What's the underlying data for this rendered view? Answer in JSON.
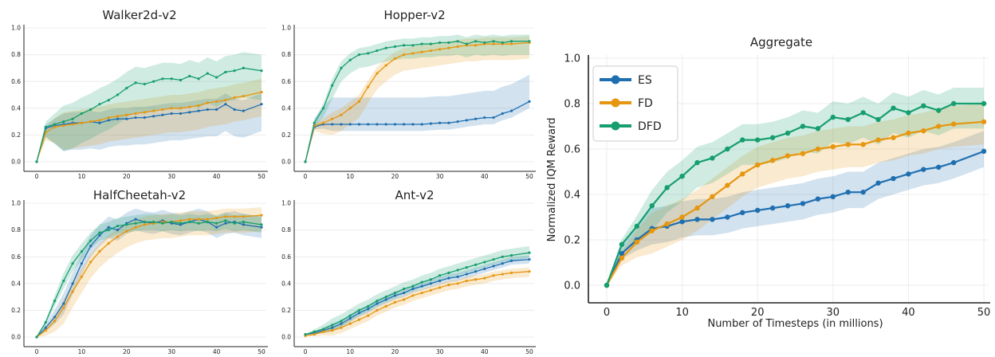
{
  "colors": {
    "ES": "#1f6fb0",
    "FD": "#e6960f",
    "DFD": "#169e6e",
    "axis": "#222222",
    "grid": "#ececec"
  },
  "chart_data": [
    {
      "type": "line",
      "title": "Walker2d-v2",
      "xlabel": "",
      "ylabel": "",
      "xlim": [
        0,
        50
      ],
      "ylim": [
        0,
        1
      ],
      "x_ticks": [
        0,
        10,
        20,
        30,
        40,
        50
      ],
      "y_ticks": [
        0.0,
        0.2,
        0.4,
        0.6,
        0.8,
        1.0
      ],
      "x_tick_labels": [
        "0",
        "10",
        "20",
        "30",
        "40",
        "50"
      ],
      "y_tick_labels": [
        "0.0",
        "0.2",
        "0.4",
        "0.6",
        "0.8",
        "1.0"
      ],
      "grid": true,
      "x": [
        0,
        2,
        4,
        6,
        8,
        10,
        12,
        14,
        16,
        18,
        20,
        22,
        24,
        26,
        28,
        30,
        32,
        34,
        36,
        38,
        40,
        42,
        44,
        46,
        50
      ],
      "series": [
        {
          "name": "ES",
          "color": "#1f6fb0",
          "values": [
            0,
            0.25,
            0.27,
            0.28,
            0.29,
            0.29,
            0.3,
            0.29,
            0.31,
            0.32,
            0.32,
            0.33,
            0.33,
            0.34,
            0.35,
            0.36,
            0.36,
            0.37,
            0.38,
            0.39,
            0.39,
            0.43,
            0.39,
            0.38,
            0.43
          ],
          "band": [
            0.2,
            0.08
          ]
        },
        {
          "name": "FD",
          "color": "#e6960f",
          "values": [
            0,
            0.22,
            0.26,
            0.27,
            0.28,
            0.29,
            0.3,
            0.31,
            0.33,
            0.34,
            0.35,
            0.36,
            0.37,
            0.38,
            0.39,
            0.4,
            0.4,
            0.41,
            0.42,
            0.44,
            0.45,
            0.46,
            0.48,
            0.49,
            0.52
          ],
          "band": [
            0.18,
            0.1
          ]
        },
        {
          "name": "DFD",
          "color": "#169e6e",
          "values": [
            0,
            0.26,
            0.28,
            0.3,
            0.32,
            0.36,
            0.39,
            0.43,
            0.46,
            0.5,
            0.55,
            0.59,
            0.58,
            0.6,
            0.62,
            0.62,
            0.61,
            0.64,
            0.62,
            0.66,
            0.63,
            0.67,
            0.68,
            0.7,
            0.68
          ],
          "band": [
            0.22,
            0.12
          ]
        }
      ]
    },
    {
      "type": "line",
      "title": "Hopper-v2",
      "xlabel": "",
      "ylabel": "",
      "xlim": [
        0,
        50
      ],
      "ylim": [
        0,
        1
      ],
      "x_ticks": [
        0,
        10,
        20,
        30,
        40,
        50
      ],
      "y_ticks": [
        0.0,
        0.2,
        0.4,
        0.6,
        0.8,
        1.0
      ],
      "x_tick_labels": [
        "0",
        "10",
        "20",
        "30",
        "40",
        "50"
      ],
      "y_tick_labels": [
        "0.0",
        "0.2",
        "0.4",
        "0.6",
        "0.8",
        "1.0"
      ],
      "grid": true,
      "x": [
        0,
        2,
        4,
        6,
        8,
        10,
        12,
        14,
        16,
        18,
        20,
        22,
        24,
        26,
        28,
        30,
        32,
        34,
        36,
        38,
        40,
        42,
        44,
        46,
        50
      ],
      "series": [
        {
          "name": "ES",
          "color": "#1f6fb0",
          "values": [
            0,
            0.26,
            0.28,
            0.28,
            0.28,
            0.28,
            0.28,
            0.28,
            0.28,
            0.28,
            0.28,
            0.28,
            0.28,
            0.28,
            0.285,
            0.29,
            0.29,
            0.3,
            0.31,
            0.32,
            0.33,
            0.33,
            0.36,
            0.38,
            0.45
          ],
          "band": [
            0.05,
            0.2
          ]
        },
        {
          "name": "FD",
          "color": "#e6960f",
          "values": [
            0,
            0.27,
            0.29,
            0.32,
            0.35,
            0.4,
            0.45,
            0.56,
            0.66,
            0.72,
            0.77,
            0.8,
            0.81,
            0.82,
            0.83,
            0.84,
            0.85,
            0.86,
            0.87,
            0.87,
            0.88,
            0.88,
            0.88,
            0.88,
            0.89
          ],
          "band": [
            0.12,
            0.05
          ]
        },
        {
          "name": "DFD",
          "color": "#169e6e",
          "values": [
            0,
            0.29,
            0.4,
            0.57,
            0.7,
            0.76,
            0.8,
            0.81,
            0.83,
            0.85,
            0.86,
            0.87,
            0.87,
            0.88,
            0.88,
            0.89,
            0.89,
            0.9,
            0.88,
            0.9,
            0.89,
            0.9,
            0.89,
            0.9,
            0.9
          ],
          "band": [
            0.1,
            0.05
          ]
        }
      ]
    },
    {
      "type": "line",
      "title": "HalfCheetah-v2",
      "xlabel": "",
      "ylabel": "",
      "xlim": [
        0,
        50
      ],
      "ylim": [
        0,
        1
      ],
      "x_ticks": [
        0,
        10,
        20,
        30,
        40,
        50
      ],
      "y_ticks": [
        0.0,
        0.2,
        0.4,
        0.6,
        0.8,
        1.0
      ],
      "x_tick_labels": [
        "0",
        "10",
        "20",
        "30",
        "40",
        "50"
      ],
      "y_tick_labels": [
        "0.0",
        "0.2",
        "0.4",
        "0.6",
        "0.8",
        "1.0"
      ],
      "grid": true,
      "x": [
        0,
        2,
        4,
        6,
        8,
        10,
        12,
        14,
        16,
        18,
        20,
        22,
        24,
        26,
        28,
        30,
        32,
        34,
        36,
        38,
        40,
        42,
        44,
        46,
        50
      ],
      "series": [
        {
          "name": "ES",
          "color": "#1f6fb0",
          "values": [
            0,
            0.07,
            0.15,
            0.25,
            0.4,
            0.55,
            0.68,
            0.76,
            0.82,
            0.8,
            0.85,
            0.88,
            0.86,
            0.85,
            0.87,
            0.85,
            0.84,
            0.86,
            0.88,
            0.86,
            0.82,
            0.85,
            0.86,
            0.84,
            0.82
          ],
          "band": [
            0.08,
            0.08
          ]
        },
        {
          "name": "FD",
          "color": "#e6960f",
          "values": [
            0,
            0.05,
            0.12,
            0.22,
            0.34,
            0.45,
            0.56,
            0.64,
            0.7,
            0.75,
            0.79,
            0.82,
            0.84,
            0.85,
            0.86,
            0.86,
            0.87,
            0.88,
            0.88,
            0.88,
            0.89,
            0.9,
            0.9,
            0.9,
            0.91
          ],
          "band": [
            0.12,
            0.06
          ]
        },
        {
          "name": "DFD",
          "color": "#169e6e",
          "values": [
            0,
            0.11,
            0.27,
            0.42,
            0.55,
            0.64,
            0.72,
            0.78,
            0.8,
            0.83,
            0.84,
            0.85,
            0.86,
            0.86,
            0.85,
            0.86,
            0.85,
            0.86,
            0.85,
            0.86,
            0.85,
            0.87,
            0.85,
            0.86,
            0.84
          ],
          "band": [
            0.06,
            0.06
          ]
        }
      ]
    },
    {
      "type": "line",
      "title": "Ant-v2",
      "xlabel": "",
      "ylabel": "",
      "xlim": [
        0,
        50
      ],
      "ylim": [
        0,
        1
      ],
      "x_ticks": [
        0,
        10,
        20,
        30,
        40,
        50
      ],
      "y_ticks": [
        0.0,
        0.2,
        0.4,
        0.6,
        0.8,
        1.0
      ],
      "x_tick_labels": [
        "0",
        "10",
        "20",
        "30",
        "40",
        "50"
      ],
      "y_tick_labels": [
        "0.0",
        "0.2",
        "0.4",
        "0.6",
        "0.8",
        "1.0"
      ],
      "grid": true,
      "x": [
        0,
        2,
        4,
        6,
        8,
        10,
        12,
        14,
        16,
        18,
        20,
        22,
        24,
        26,
        28,
        30,
        32,
        34,
        36,
        38,
        40,
        42,
        44,
        46,
        50
      ],
      "series": [
        {
          "name": "ES",
          "color": "#1f6fb0",
          "values": [
            0.02,
            0.03,
            0.05,
            0.07,
            0.1,
            0.14,
            0.18,
            0.21,
            0.25,
            0.28,
            0.31,
            0.33,
            0.36,
            0.38,
            0.4,
            0.42,
            0.44,
            0.45,
            0.47,
            0.49,
            0.51,
            0.53,
            0.55,
            0.57,
            0.58
          ],
          "band": [
            0.03,
            0.03
          ]
        },
        {
          "name": "FD",
          "color": "#e6960f",
          "values": [
            0.01,
            0.02,
            0.04,
            0.05,
            0.07,
            0.1,
            0.13,
            0.16,
            0.2,
            0.23,
            0.26,
            0.28,
            0.31,
            0.33,
            0.35,
            0.37,
            0.39,
            0.4,
            0.42,
            0.43,
            0.44,
            0.46,
            0.47,
            0.48,
            0.49
          ],
          "band": [
            0.04,
            0.03
          ]
        },
        {
          "name": "DFD",
          "color": "#169e6e",
          "values": [
            0.02,
            0.04,
            0.06,
            0.09,
            0.12,
            0.16,
            0.2,
            0.23,
            0.27,
            0.3,
            0.33,
            0.36,
            0.38,
            0.41,
            0.43,
            0.46,
            0.48,
            0.5,
            0.52,
            0.54,
            0.56,
            0.58,
            0.6,
            0.61,
            0.63
          ],
          "band": [
            0.04,
            0.05
          ]
        }
      ]
    },
    {
      "type": "line",
      "title": "Aggregate",
      "xlabel": "Number of Timesteps (in millions)",
      "ylabel": "Normalized IQM Reward",
      "xlim": [
        0,
        50
      ],
      "ylim": [
        0,
        1
      ],
      "x_ticks": [
        0,
        10,
        20,
        30,
        40,
        50
      ],
      "y_ticks": [
        0.0,
        0.2,
        0.4,
        0.6,
        0.8,
        1.0
      ],
      "x_tick_labels": [
        "0",
        "10",
        "20",
        "30",
        "40",
        "50"
      ],
      "y_tick_labels": [
        "0.0",
        "0.2",
        "0.4",
        "0.6",
        "0.8",
        "1.0"
      ],
      "grid": true,
      "legend": "top-left",
      "x": [
        0,
        2,
        4,
        6,
        8,
        10,
        12,
        14,
        16,
        18,
        20,
        22,
        24,
        26,
        28,
        30,
        32,
        34,
        36,
        38,
        40,
        42,
        44,
        46,
        50
      ],
      "series": [
        {
          "name": "ES",
          "color": "#1f6fb0",
          "values": [
            0,
            0.14,
            0.2,
            0.25,
            0.26,
            0.28,
            0.29,
            0.29,
            0.3,
            0.32,
            0.33,
            0.34,
            0.35,
            0.36,
            0.38,
            0.39,
            0.41,
            0.41,
            0.45,
            0.47,
            0.49,
            0.51,
            0.52,
            0.54,
            0.59
          ],
          "band": [
            0.07,
            0.09
          ]
        },
        {
          "name": "FD",
          "color": "#e6960f",
          "values": [
            0,
            0.12,
            0.19,
            0.24,
            0.27,
            0.3,
            0.34,
            0.39,
            0.44,
            0.49,
            0.53,
            0.55,
            0.57,
            0.58,
            0.6,
            0.61,
            0.62,
            0.62,
            0.64,
            0.65,
            0.67,
            0.68,
            0.7,
            0.71,
            0.72
          ],
          "band": [
            0.1,
            0.08
          ]
        },
        {
          "name": "DFD",
          "color": "#169e6e",
          "values": [
            0,
            0.18,
            0.26,
            0.35,
            0.43,
            0.48,
            0.54,
            0.56,
            0.6,
            0.64,
            0.64,
            0.65,
            0.67,
            0.7,
            0.69,
            0.74,
            0.73,
            0.76,
            0.73,
            0.78,
            0.76,
            0.79,
            0.77,
            0.8,
            0.8
          ],
          "band": [
            0.11,
            0.07
          ]
        }
      ]
    }
  ]
}
